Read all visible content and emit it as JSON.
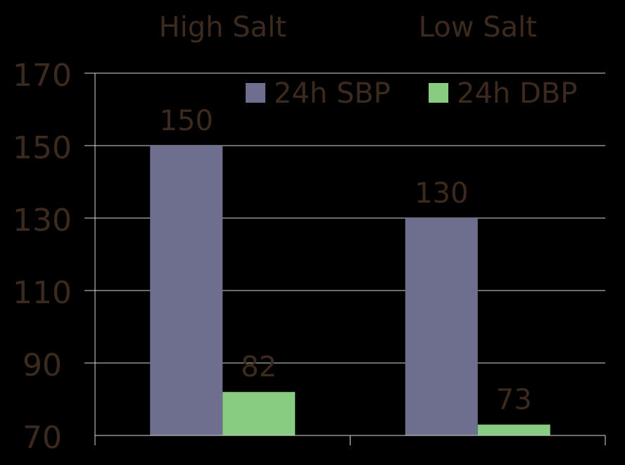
{
  "chart_data": {
    "type": "bar",
    "categories": [
      "High Salt",
      "Low Salt"
    ],
    "series": [
      {
        "name": "24h SBP",
        "values": [
          150,
          130
        ],
        "color": "#6e6f8f"
      },
      {
        "name": "24h DBP",
        "values": [
          82,
          73
        ],
        "color": "#88cc82"
      }
    ],
    "ylim": [
      70,
      170
    ],
    "yticks": [
      70,
      90,
      110,
      130,
      150,
      170
    ],
    "grid": true,
    "legend_position": "top-right",
    "category_labels_position": "top"
  },
  "colors": {
    "background": "#000000",
    "text": "#3d2a1e",
    "gridline": "#d9d9d9",
    "axis": "#d9d9d9"
  }
}
